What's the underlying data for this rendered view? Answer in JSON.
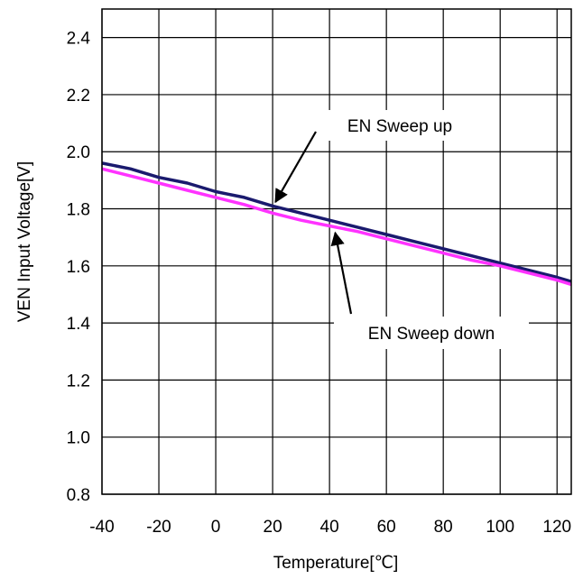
{
  "chart_data": {
    "type": "line",
    "title": "",
    "xlabel": "Temperature[℃]",
    "ylabel": "VEN Input Voltage[V]",
    "xlim": [
      -40,
      125
    ],
    "ylim": [
      0.8,
      2.5
    ],
    "x_ticks": [
      -40,
      -20,
      0,
      20,
      40,
      60,
      80,
      100,
      120
    ],
    "y_ticks": [
      0.8,
      1.0,
      1.2,
      1.4,
      1.6,
      1.8,
      2.0,
      2.2,
      2.4
    ],
    "x_tick_labels": [
      "-40",
      "-20",
      "0",
      "20",
      "40",
      "60",
      "80",
      "100",
      "120"
    ],
    "y_tick_labels": [
      "0.8",
      "1.0",
      "1.2",
      "1.4",
      "1.6",
      "1.8",
      "2.0",
      "2.2",
      "2.4"
    ],
    "grid": true,
    "series": [
      {
        "name": "EN Sweep up",
        "color": "#1a1a6e",
        "x": [
          -40,
          -30,
          -20,
          -10,
          0,
          10,
          20,
          30,
          40,
          50,
          60,
          70,
          80,
          90,
          100,
          110,
          120,
          125
        ],
        "y": [
          1.96,
          1.94,
          1.91,
          1.89,
          1.86,
          1.84,
          1.81,
          1.785,
          1.76,
          1.735,
          1.71,
          1.685,
          1.66,
          1.635,
          1.61,
          1.585,
          1.56,
          1.545
        ]
      },
      {
        "name": "EN Sweep down",
        "color": "#ff33ff",
        "x": [
          -40,
          -30,
          -20,
          -10,
          0,
          10,
          20,
          30,
          40,
          50,
          60,
          70,
          80,
          90,
          100,
          110,
          120,
          125
        ],
        "y": [
          1.94,
          1.915,
          1.89,
          1.865,
          1.84,
          1.815,
          1.785,
          1.76,
          1.74,
          1.72,
          1.695,
          1.67,
          1.645,
          1.62,
          1.6,
          1.575,
          1.55,
          1.535
        ]
      }
    ],
    "annotations": [
      {
        "text": "EN Sweep up",
        "target_series": 0,
        "target_x": 21,
        "target_y": 1.805
      },
      {
        "text": "EN Sweep down",
        "target_series": 1,
        "target_x": 42,
        "target_y": 1.735
      }
    ]
  }
}
